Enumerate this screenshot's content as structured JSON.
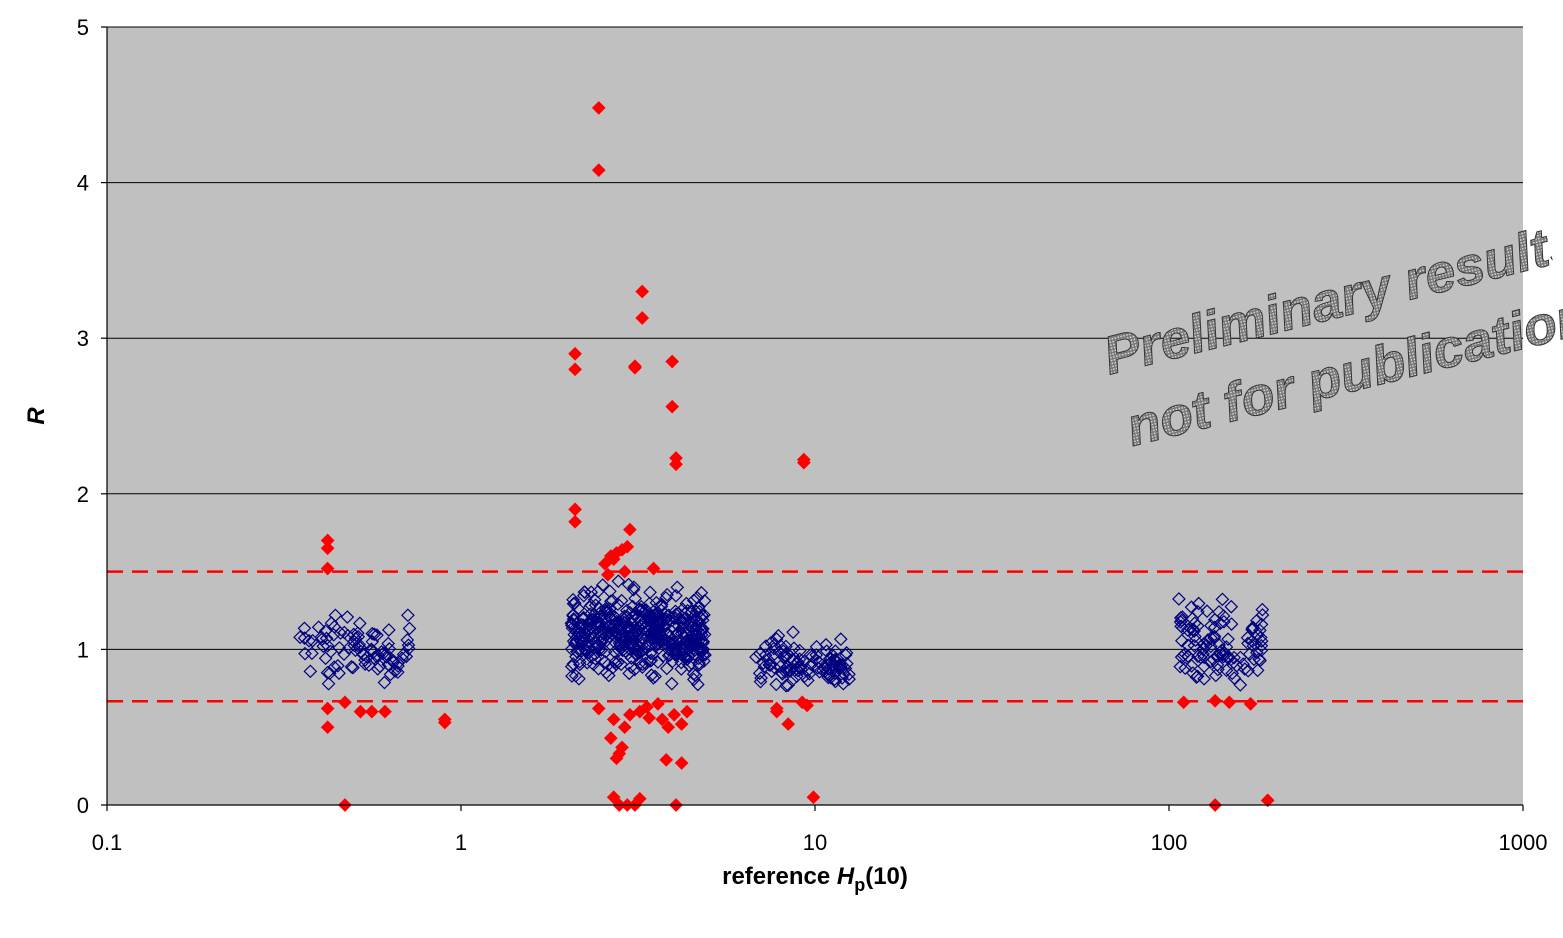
{
  "chart_data": {
    "type": "scatter",
    "title": "",
    "xlabel_prefix": "reference ",
    "xlabel_var": "H",
    "xlabel_sub": "p",
    "xlabel_suffix": "(10)",
    "ylabel": "R",
    "x_scale": "log",
    "xlim": [
      0.1,
      1000
    ],
    "ylim": [
      0,
      5
    ],
    "x_ticks": [
      "0.1",
      "1",
      "10",
      "100",
      "1000"
    ],
    "y_ticks": [
      "0",
      "1",
      "2",
      "3",
      "4",
      "5"
    ],
    "grid": "horizontal major gridlines",
    "legend": "none",
    "plot_background": "#c0c0c0",
    "reference_lines": [
      {
        "y": 1.5,
        "style": "dashed",
        "color": "#ff0000"
      },
      {
        "y": 0.667,
        "style": "dashed",
        "color": "#ff0000"
      }
    ],
    "watermark": [
      "Preliminary results",
      "not for publication"
    ],
    "series": [
      {
        "marker": "hollow-diamond",
        "color": "#000080",
        "clusters": [
          {
            "x_range": [
              0.35,
              0.72
            ],
            "y_range": [
              0.7,
              1.3
            ],
            "count": 90
          },
          {
            "x_range": [
              2.05,
              4.9
            ],
            "y_range": [
              0.7,
              1.5
            ],
            "count": 480
          },
          {
            "x_range": [
              6.8,
              12.5
            ],
            "y_range": [
              0.67,
              1.16
            ],
            "count": 110
          },
          {
            "x_range": [
              105,
              185
            ],
            "y_range": [
              0.68,
              1.4
            ],
            "count": 110
          }
        ]
      },
      {
        "marker": "filled-diamond",
        "color": "#ff0000",
        "points": [
          [
            0.42,
            1.7
          ],
          [
            0.42,
            1.65
          ],
          [
            0.42,
            1.52
          ],
          [
            0.42,
            0.62
          ],
          [
            0.42,
            0.5
          ],
          [
            0.47,
            0.66
          ],
          [
            0.47,
            0.0
          ],
          [
            0.52,
            0.6
          ],
          [
            0.56,
            0.6
          ],
          [
            0.61,
            0.6
          ],
          [
            0.9,
            0.55
          ],
          [
            0.9,
            0.53
          ],
          [
            2.45,
            4.48
          ],
          [
            2.45,
            4.08
          ],
          [
            2.1,
            2.9
          ],
          [
            2.1,
            2.8
          ],
          [
            2.1,
            1.9
          ],
          [
            2.1,
            1.82
          ],
          [
            3.25,
            3.3
          ],
          [
            3.25,
            3.13
          ],
          [
            3.1,
            2.82
          ],
          [
            3.1,
            2.81
          ],
          [
            3.95,
            2.85
          ],
          [
            3.95,
            2.56
          ],
          [
            4.05,
            2.23
          ],
          [
            4.05,
            2.19
          ],
          [
            2.55,
            1.55
          ],
          [
            2.65,
            1.6
          ],
          [
            2.75,
            1.62
          ],
          [
            2.85,
            1.64
          ],
          [
            2.95,
            1.66
          ],
          [
            3.0,
            1.77
          ],
          [
            2.7,
            1.58
          ],
          [
            2.9,
            1.5
          ],
          [
            3.5,
            1.52
          ],
          [
            2.6,
            1.48
          ],
          [
            2.45,
            0.62
          ],
          [
            2.65,
            0.43
          ],
          [
            2.75,
            0.3
          ],
          [
            2.8,
            0.33
          ],
          [
            2.85,
            0.37
          ],
          [
            2.7,
            0.05
          ],
          [
            2.8,
            0.0
          ],
          [
            2.95,
            0.0
          ],
          [
            3.2,
            0.04
          ],
          [
            3.1,
            0.0
          ],
          [
            2.7,
            0.55
          ],
          [
            2.9,
            0.5
          ],
          [
            3.0,
            0.58
          ],
          [
            3.2,
            0.6
          ],
          [
            3.35,
            0.63
          ],
          [
            3.7,
            0.55
          ],
          [
            3.85,
            0.5
          ],
          [
            4.0,
            0.58
          ],
          [
            4.2,
            0.52
          ],
          [
            4.35,
            0.6
          ],
          [
            3.8,
            0.29
          ],
          [
            4.2,
            0.27
          ],
          [
            4.05,
            0.0
          ],
          [
            3.6,
            0.65
          ],
          [
            3.4,
            0.56
          ],
          [
            9.3,
            2.22
          ],
          [
            9.3,
            2.2
          ],
          [
            7.8,
            0.62
          ],
          [
            7.8,
            0.6
          ],
          [
            8.4,
            0.52
          ],
          [
            9.2,
            0.66
          ],
          [
            9.5,
            0.64
          ],
          [
            9.9,
            0.05
          ],
          [
            110,
            0.66
          ],
          [
            135,
            0.67
          ],
          [
            148,
            0.66
          ],
          [
            170,
            0.65
          ],
          [
            135,
            0.0
          ],
          [
            190,
            0.03
          ]
        ]
      }
    ]
  }
}
